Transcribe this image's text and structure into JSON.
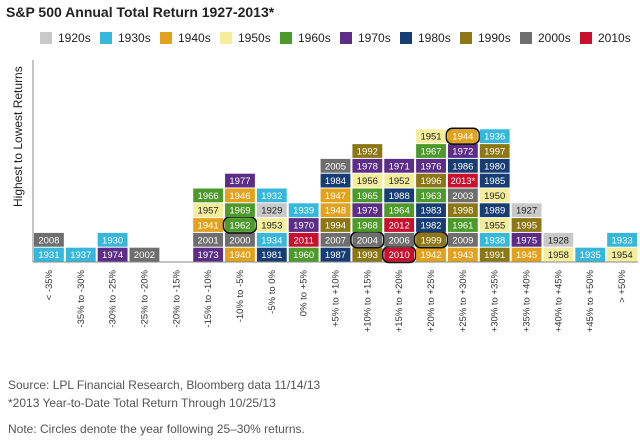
{
  "chart_data": {
    "type": "table",
    "title": "S&P 500 Annual Total Return 1927-2013*",
    "ylabel": "Highest to Lowest Returns",
    "legend": [
      {
        "label": "1920s",
        "color": "#c9c9c9"
      },
      {
        "label": "1930s",
        "color": "#35b8db"
      },
      {
        "label": "1940s",
        "color": "#e3a21e"
      },
      {
        "label": "1950s",
        "color": "#f4ee9c"
      },
      {
        "label": "1960s",
        "color": "#4c9a2a"
      },
      {
        "label": "1970s",
        "color": "#5b2d86"
      },
      {
        "label": "1980s",
        "color": "#163e74"
      },
      {
        "label": "1990s",
        "color": "#8c7714"
      },
      {
        "label": "2000s",
        "color": "#6e6e6e"
      },
      {
        "label": "2010s",
        "color": "#c8102e"
      }
    ],
    "categories": [
      "< -35%",
      "-35% to -30%",
      "-30% to -25%",
      "-25% to -20%",
      "-20% to -15%",
      "-15% to -10%",
      "-10% to -5%",
      "-5% to 0%",
      "0% to +5%",
      "+5% to +10%",
      "+10% to +15%",
      "+15% to +20%",
      "+20% to +25%",
      "+25% to +30%",
      "+30% to +35%",
      "+35% to +40%",
      "+40% to +45%",
      "+45% to +50%",
      "> +50%"
    ],
    "columns": [
      [
        "1931",
        "2008"
      ],
      [
        "1937"
      ],
      [
        "1974",
        "1930"
      ],
      [
        "2002"
      ],
      [],
      [
        "1973",
        "2001",
        "1941",
        "1957",
        "1966"
      ],
      [
        "1940",
        "2000",
        "1962",
        "1969",
        "1946",
        "1977"
      ],
      [
        "1981",
        "1934",
        "1953",
        "1929",
        "1932"
      ],
      [
        "1960",
        "2011",
        "1970",
        "1939"
      ],
      [
        "1987",
        "2007",
        "1994",
        "1948",
        "1947",
        "1984",
        "2005"
      ],
      [
        "1993",
        "2004",
        "1968",
        "1979",
        "1965",
        "1956",
        "1978",
        "1992"
      ],
      [
        "2010",
        "2006",
        "2012",
        "1964",
        "1988",
        "1952",
        "1971"
      ],
      [
        "1942",
        "1999",
        "1982",
        "1983",
        "1963",
        "1996",
        "1976",
        "1967",
        "1951"
      ],
      [
        "1943",
        "2009",
        "1961",
        "1998",
        "2003",
        "2013*",
        "1986",
        "1972",
        "1944"
      ],
      [
        "1991",
        "1938",
        "1955",
        "1989",
        "1950",
        "1985",
        "1980",
        "1997",
        "1936"
      ],
      [
        "1945",
        "1975",
        "1995",
        "1927"
      ],
      [
        "1958",
        "1928"
      ],
      [
        "1935"
      ],
      [
        "1954",
        "1933"
      ]
    ],
    "circled": [
      "2004",
      "2010",
      "1962",
      "1999",
      "1944"
    ]
  },
  "notes": {
    "source": "Source: LPL Financial Research, Bloomberg data   11/14/13",
    "asterisk": "*2013 Year-to-Date Total Return Through 10/25/13",
    "circles": "Note: Circles denote the year following 25–30% returns."
  }
}
